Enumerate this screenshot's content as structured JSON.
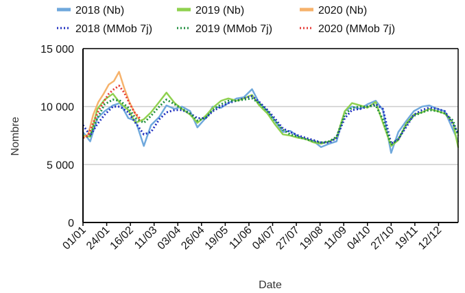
{
  "chart_data": {
    "type": "line",
    "title": "",
    "xlabel": "Date",
    "ylabel": "Nombre",
    "xlim": [
      1,
      365
    ],
    "ylim": [
      0,
      15000
    ],
    "yticks": [
      {
        "value": 0,
        "label": "0"
      },
      {
        "value": 5000,
        "label": "5 000"
      },
      {
        "value": 10000,
        "label": "10 000"
      },
      {
        "value": 15000,
        "label": "15 000"
      }
    ],
    "xticks": [
      {
        "day": 1,
        "label": "01/01"
      },
      {
        "day": 24,
        "label": "24/01"
      },
      {
        "day": 47,
        "label": "16/02"
      },
      {
        "day": 70,
        "label": "11/03"
      },
      {
        "day": 93,
        "label": "03/04"
      },
      {
        "day": 116,
        "label": "26/04"
      },
      {
        "day": 139,
        "label": "19/05"
      },
      {
        "day": 162,
        "label": "11/06"
      },
      {
        "day": 185,
        "label": "04/07"
      },
      {
        "day": 208,
        "label": "27/07"
      },
      {
        "day": 231,
        "label": "19/08"
      },
      {
        "day": 254,
        "label": "11/09"
      },
      {
        "day": 277,
        "label": "04/10"
      },
      {
        "day": 300,
        "label": "27/10"
      },
      {
        "day": 323,
        "label": "19/11"
      },
      {
        "day": 346,
        "label": "12/12"
      }
    ],
    "grid": {
      "horizontal": true,
      "vertical": false
    },
    "legend_position": "top",
    "series": [
      {
        "name": "2018 (Nb)",
        "color": "#6fa8dc",
        "style": "solid",
        "days": [
          1,
          8,
          15,
          22,
          30,
          37,
          45,
          52,
          60,
          67,
          75,
          82,
          90,
          97,
          105,
          112,
          120,
          127,
          135,
          142,
          150,
          157,
          165,
          172,
          180,
          187,
          195,
          202,
          210,
          217,
          225,
          232,
          240,
          247,
          255,
          262,
          270,
          277,
          285,
          292,
          300,
          307,
          315,
          322,
          330,
          337,
          345,
          352,
          360,
          365
        ],
        "values": [
          7800,
          7000,
          9000,
          9600,
          10100,
          10300,
          9000,
          8800,
          6600,
          8400,
          9100,
          10100,
          9800,
          10000,
          9600,
          8200,
          9000,
          10000,
          9900,
          10300,
          10700,
          10800,
          11500,
          10300,
          9600,
          8800,
          7800,
          7900,
          7400,
          7200,
          7000,
          6500,
          6800,
          7000,
          9600,
          10000,
          9800,
          10200,
          10500,
          9700,
          6000,
          7800,
          8800,
          9600,
          10000,
          10100,
          9800,
          9600,
          8000,
          7000
        ]
      },
      {
        "name": "2019 (Nb)",
        "color": "#8fd14f",
        "style": "solid",
        "days": [
          1,
          8,
          15,
          22,
          30,
          37,
          45,
          52,
          60,
          67,
          75,
          82,
          90,
          97,
          105,
          112,
          120,
          127,
          135,
          142,
          150,
          157,
          165,
          172,
          180,
          187,
          195,
          202,
          210,
          217,
          225,
          232,
          240,
          247,
          255,
          262,
          270,
          277,
          285,
          292,
          300,
          307,
          315,
          322,
          330,
          337,
          345,
          352,
          360,
          365
        ],
        "values": [
          7500,
          7400,
          9800,
          10600,
          11100,
          10300,
          9700,
          8600,
          8900,
          9500,
          10400,
          11200,
          10300,
          9800,
          9300,
          8600,
          9200,
          9900,
          10500,
          10700,
          10500,
          10700,
          11000,
          10100,
          9400,
          8500,
          7600,
          7500,
          7300,
          7200,
          6900,
          6800,
          7000,
          7300,
          9600,
          10300,
          10100,
          9900,
          10400,
          8600,
          6600,
          7100,
          8600,
          9300,
          9500,
          9800,
          9600,
          9400,
          8600,
          6500
        ]
      },
      {
        "name": "2020 (Nb)",
        "color": "#f6b26b",
        "style": "solid",
        "days": [
          1,
          6,
          11,
          16,
          21,
          26,
          31,
          36,
          41,
          46,
          51,
          56
        ],
        "values": [
          7300,
          7600,
          9300,
          10400,
          11100,
          11900,
          12200,
          13000,
          11600,
          10400,
          9500,
          8800
        ]
      },
      {
        "name": "2018 (MMob 7j)",
        "color": "#1f2fbf",
        "style": "dotted",
        "days": [
          1,
          8,
          15,
          22,
          30,
          37,
          45,
          52,
          60,
          67,
          75,
          82,
          90,
          97,
          105,
          112,
          120,
          127,
          135,
          142,
          150,
          157,
          165,
          172,
          180,
          187,
          195,
          202,
          210,
          217,
          225,
          232,
          240,
          247,
          255,
          262,
          270,
          277,
          285,
          292,
          300,
          307,
          315,
          322,
          330,
          337,
          345,
          352,
          360,
          365
        ],
        "values": [
          8400,
          7500,
          8500,
          9300,
          10000,
          10000,
          9500,
          8600,
          7600,
          7800,
          8900,
          9500,
          9700,
          9700,
          9400,
          9000,
          9000,
          9600,
          10000,
          10300,
          10500,
          10700,
          10900,
          10400,
          9700,
          9000,
          8100,
          7800,
          7500,
          7300,
          7100,
          6900,
          6900,
          7300,
          9000,
          9700,
          9800,
          10000,
          10200,
          9800,
          6800,
          7200,
          8300,
          9300,
          9700,
          9900,
          9800,
          9600,
          8500,
          7700
        ]
      },
      {
        "name": "2019 (MMob 7j)",
        "color": "#1e8e3e",
        "style": "dotted",
        "days": [
          1,
          8,
          15,
          22,
          30,
          37,
          45,
          52,
          60,
          67,
          75,
          82,
          90,
          97,
          105,
          112,
          120,
          127,
          135,
          142,
          150,
          157,
          165,
          172,
          180,
          187,
          195,
          202,
          210,
          217,
          225,
          232,
          240,
          247,
          255,
          262,
          270,
          277,
          285,
          292,
          300,
          307,
          315,
          322,
          330,
          337,
          345,
          352,
          360,
          365
        ],
        "values": [
          7300,
          7500,
          9000,
          10200,
          10600,
          10500,
          9900,
          9000,
          8600,
          9200,
          10000,
          10600,
          10200,
          9800,
          9400,
          8800,
          9000,
          9700,
          10200,
          10500,
          10500,
          10600,
          10700,
          10300,
          9600,
          8800,
          8000,
          7600,
          7400,
          7200,
          7000,
          6900,
          7000,
          7400,
          9300,
          9900,
          10000,
          10000,
          10100,
          8900,
          6700,
          7200,
          8500,
          9200,
          9500,
          9700,
          9600,
          9400,
          8800,
          7500
        ]
      },
      {
        "name": "2020 (MMob 7j)",
        "color": "#e53935",
        "style": "dotted",
        "days": [
          1,
          6,
          11,
          16,
          21,
          26,
          31,
          36,
          41,
          46,
          51,
          56
        ],
        "values": [
          7300,
          7500,
          8600,
          9600,
          10400,
          11100,
          11500,
          11800,
          11200,
          10300,
          9500,
          9000
        ]
      }
    ]
  }
}
